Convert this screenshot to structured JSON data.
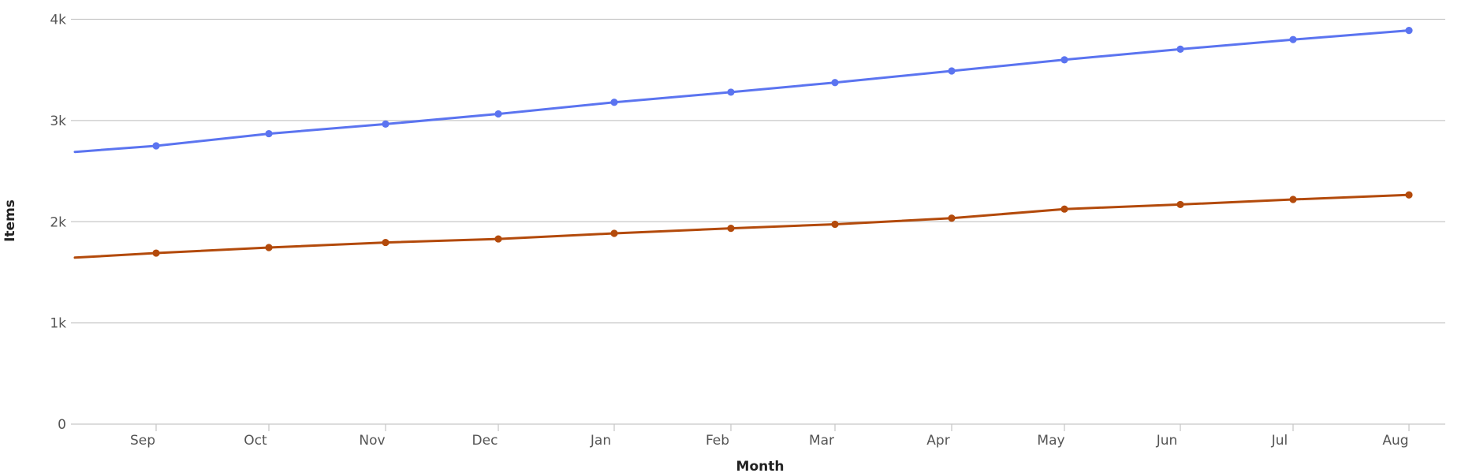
{
  "chart_data": {
    "type": "line",
    "title": "",
    "xlabel": "Month",
    "ylabel": "Items",
    "categories": [
      "Sep",
      "Oct",
      "Nov",
      "Dec",
      "Jan",
      "Feb",
      "Mar",
      "Apr",
      "May",
      "Jun",
      "Jul",
      "Aug"
    ],
    "ylim": [
      0,
      4000
    ],
    "yticks": [
      0,
      1000,
      2000,
      3000,
      4000
    ],
    "ytick_labels": [
      "0",
      "1k",
      "2k",
      "3k",
      "4k"
    ],
    "grid": true,
    "legend": "none",
    "series": [
      {
        "color": "#5b74f0",
        "values": [
          2750,
          2870,
          2965,
          3065,
          3180,
          3280,
          3375,
          3490,
          3600,
          3705,
          3800,
          3890
        ],
        "lead_in_value": 2690
      },
      {
        "color": "#b34a0b",
        "values": [
          1690,
          1745,
          1795,
          1830,
          1885,
          1935,
          1975,
          2035,
          2125,
          2170,
          2220,
          2265
        ],
        "lead_in_value": 1645
      }
    ]
  }
}
